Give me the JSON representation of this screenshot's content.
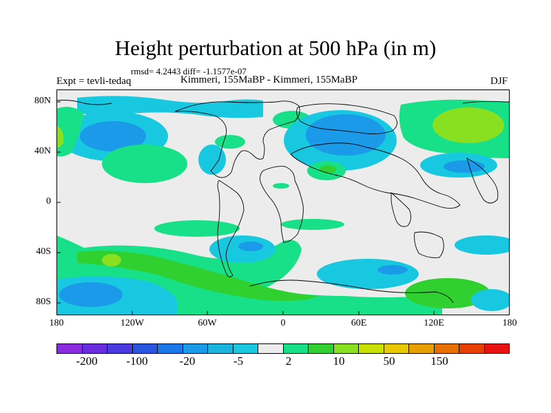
{
  "title": "Height perturbation at 500 hPa (in m)",
  "stats": "rmsd= 4.2443 diff= -1.1577e-07",
  "experiment": "Expt = tevli-tedaq",
  "comparison": "Kimmeri, 155MaBP - Kimmeri, 155MaBP",
  "season": "DJF",
  "lat_ticks": [
    "80N",
    "40N",
    "0",
    "40S",
    "80S"
  ],
  "lon_ticks": [
    "180",
    "120W",
    "60W",
    "0",
    "60E",
    "120E",
    "180"
  ],
  "colorbar": {
    "colors": [
      "#8a2be2",
      "#6a2ce0",
      "#4a3ae0",
      "#2a55e0",
      "#1a78e8",
      "#1a9ae8",
      "#1ab4e0",
      "#18c8e0",
      "#ececec",
      "#18e088",
      "#30d030",
      "#88e020",
      "#c8e000",
      "#e8c800",
      "#e8a000",
      "#e87000",
      "#e84000",
      "#e81010"
    ],
    "labels": [
      "-200",
      "-100",
      "-20",
      "-5",
      "2",
      "10",
      "50",
      "150"
    ]
  },
  "colors": {
    "background": "#ececec",
    "neg_strong": "#1a9ae8",
    "neg_weak": "#18c8e0",
    "pos_weak": "#18e088",
    "pos_mid": "#30d030",
    "pos_strong": "#88e020",
    "pos_peak": "#c8e000",
    "coast": "#000000"
  }
}
